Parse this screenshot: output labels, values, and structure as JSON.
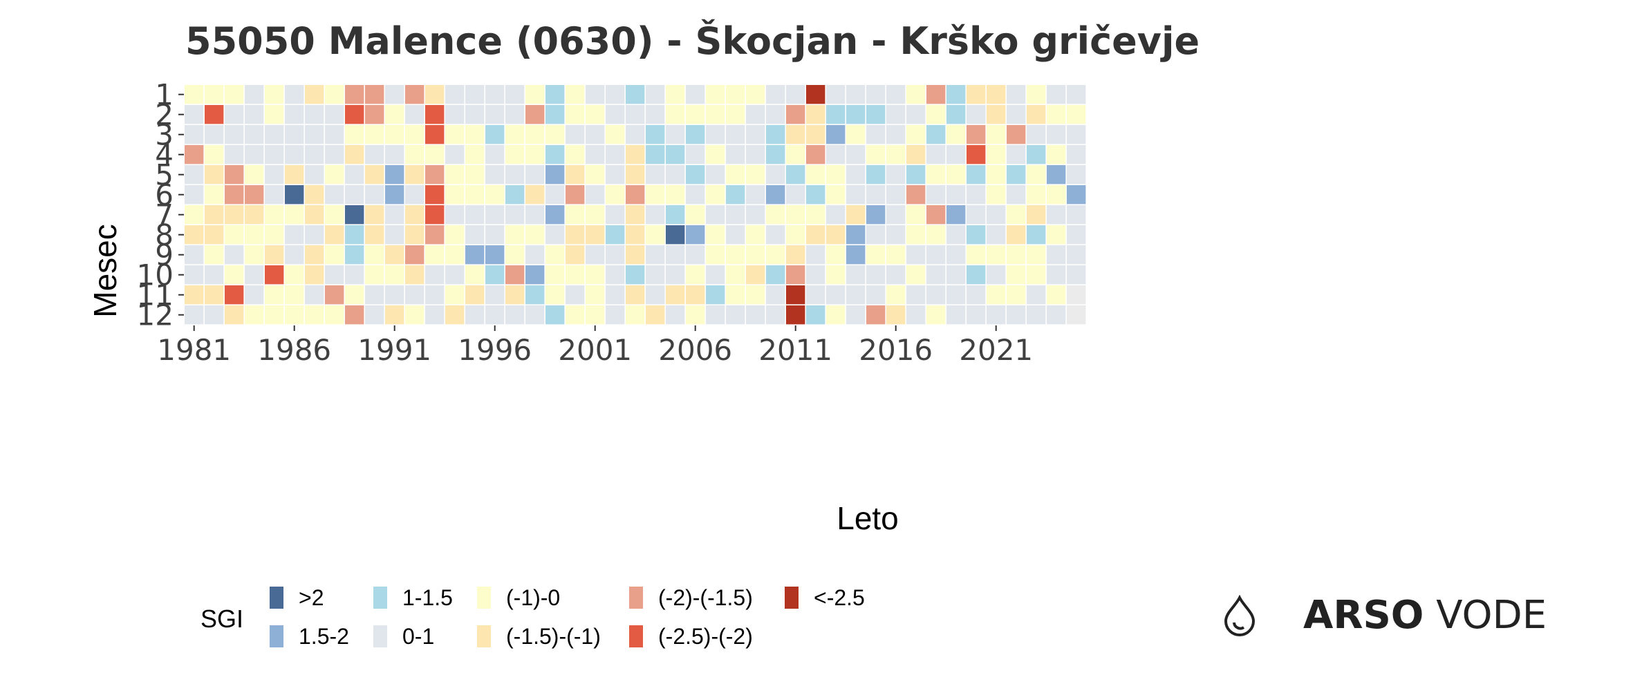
{
  "title": "55050 Malence (0630) - Škocjan - Krško gričevje",
  "legend": {
    "title": "SGI",
    "classes": [
      {
        "key": "A",
        "label": ">2",
        "color": "#4a6a96"
      },
      {
        "key": "B",
        "label": "1.5-2",
        "color": "#8eb0d6"
      },
      {
        "key": "C",
        "label": "1-1.5",
        "color": "#abd8e6"
      },
      {
        "key": "D",
        "label": "0-1",
        "color": "#e1e6ec"
      },
      {
        "key": "E",
        "label": "(-1)-0",
        "color": "#fdfdcc"
      },
      {
        "key": "F",
        "label": "(-1.5)-(-1)",
        "color": "#fde6b0"
      },
      {
        "key": "G",
        "label": "(-2)-(-1.5)",
        "color": "#e9a08a"
      },
      {
        "key": "H",
        "label": "(-2.5)-(-2)",
        "color": "#e35b43"
      },
      {
        "key": "I",
        "label": "<-2.5",
        "color": "#b23420"
      }
    ]
  },
  "brand": {
    "strong": "ARSO",
    "light": " VODE",
    "icon": "water-drop-icon"
  },
  "chart_data": {
    "type": "heatmap",
    "title": "55050 Malence (0630) - Škocjan - Krško gričevje",
    "xlabel": "Leto",
    "ylabel": "Mesec",
    "x_ticks": [
      "1981",
      "1986",
      "1991",
      "1996",
      "2001",
      "2006",
      "2011",
      "2016",
      "2021"
    ],
    "y_ticks": [
      "1",
      "2",
      "3",
      "4",
      "5",
      "6",
      "7",
      "8",
      "9",
      "10",
      "11",
      "12"
    ],
    "years": [
      1981,
      1982,
      1983,
      1984,
      1985,
      1986,
      1987,
      1988,
      1989,
      1990,
      1991,
      1992,
      1993,
      1994,
      1995,
      1996,
      1997,
      1998,
      1999,
      2000,
      2001,
      2002,
      2003,
      2004,
      2005,
      2006,
      2007,
      2008,
      2009,
      2010,
      2011,
      2012,
      2013,
      2014,
      2015,
      2016,
      2017,
      2018,
      2019,
      2020,
      2021,
      2022,
      2023,
      2024,
      2025
    ],
    "months": [
      1,
      2,
      3,
      4,
      5,
      6,
      7,
      8,
      9,
      10,
      11,
      12
    ],
    "legend_title": "SGI",
    "missing_color": "#ebebeb",
    "rows": [
      "EEEDEDFEGGDGFDDDDECEDDCDEDEEEDDIDDDDEGCFFDEDD",
      "DHDDEDDDHGEDHDDDDGCEEDDDEEEEDDGFCCCDDECDFDFEE",
      "DDDDDDDDEEEEHEECEEEDDEDCDCDDDCFFBEDDECEGEGDDD",
      "GEDDDDDDFDDEEDEDEECEDDFCCDEDDCEGDDEEFDDHEDCED",
      "DFGEDFDEDFBFGEEDDDBFEDFDDCDEEDCEEDCDCEECECEBD",
      "DEGGDAFDDDBDHEEECFDGDEGEEDECDBDCEDDDGDDDEDEEB",
      "EFFFEEFEAFDFHDDDDDBEEDFDCEDDDEEEDFBDEGBDDEFDD",
      "FFEEEDDFCFDFGEDDEEDFFCFEABEDEDEFFBDDEEDCDFCED",
      "DEDEFDFECEFGEEBBEDEFDDFDDDEEEEFDEBEEDDDEEEEDD",
      "DDEDHEFDDEEFDDECGBEEEDCDDEDEFCGDEDDDEDDCDEEDD",
      "FFHDEEDGEDDDDEFDFCEDEDFDFFCEEDIDDDDEDDDDEEDEM",
      "DDFEEEEEGDFEDFDDDDCEEDEFDEDDDDICEDGFDEDDDDDDM"
    ]
  }
}
